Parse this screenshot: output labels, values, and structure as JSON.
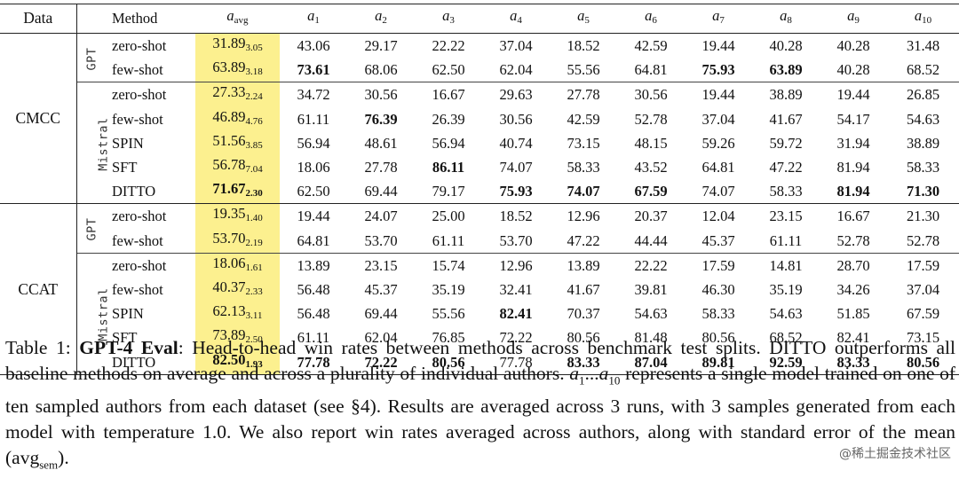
{
  "table": {
    "headers": {
      "data": "Data",
      "method": "Method",
      "avg_base": "a",
      "avg_sub": "avg",
      "author_base": "a",
      "authors": [
        "1",
        "2",
        "3",
        "4",
        "5",
        "6",
        "7",
        "8",
        "9",
        "10"
      ]
    },
    "datasets": [
      {
        "name": "CMCC",
        "groups": [
          {
            "model": "GPT",
            "rows": [
              {
                "method": "zero-shot",
                "avg": "31.89",
                "sem": "3.05",
                "avg_bold": false,
                "values": [
                  "43.06",
                  "29.17",
                  "22.22",
                  "37.04",
                  "18.52",
                  "42.59",
                  "19.44",
                  "40.28",
                  "40.28",
                  "31.48"
                ],
                "bold": []
              },
              {
                "method": "few-shot",
                "avg": "63.89",
                "sem": "3.18",
                "avg_bold": false,
                "values": [
                  "73.61",
                  "68.06",
                  "62.50",
                  "62.04",
                  "55.56",
                  "64.81",
                  "75.93",
                  "63.89",
                  "40.28",
                  "68.52"
                ],
                "bold": [
                  0,
                  6,
                  7
                ]
              }
            ]
          },
          {
            "model": "Mistral",
            "rows": [
              {
                "method": "zero-shot",
                "avg": "27.33",
                "sem": "2.24",
                "avg_bold": false,
                "values": [
                  "34.72",
                  "30.56",
                  "16.67",
                  "29.63",
                  "27.78",
                  "30.56",
                  "19.44",
                  "38.89",
                  "19.44",
                  "26.85"
                ],
                "bold": []
              },
              {
                "method": "few-shot",
                "avg": "46.89",
                "sem": "4.76",
                "avg_bold": false,
                "values": [
                  "61.11",
                  "76.39",
                  "26.39",
                  "30.56",
                  "42.59",
                  "52.78",
                  "37.04",
                  "41.67",
                  "54.17",
                  "54.63"
                ],
                "bold": [
                  1
                ]
              },
              {
                "method": "SPIN",
                "avg": "51.56",
                "sem": "3.85",
                "avg_bold": false,
                "values": [
                  "56.94",
                  "48.61",
                  "56.94",
                  "40.74",
                  "73.15",
                  "48.15",
                  "59.26",
                  "59.72",
                  "31.94",
                  "38.89"
                ],
                "bold": []
              },
              {
                "method": "SFT",
                "avg": "56.78",
                "sem": "7.04",
                "avg_bold": false,
                "values": [
                  "18.06",
                  "27.78",
                  "86.11",
                  "74.07",
                  "58.33",
                  "43.52",
                  "64.81",
                  "47.22",
                  "81.94",
                  "58.33"
                ],
                "bold": [
                  2
                ]
              },
              {
                "method": "DITTO",
                "avg": "71.67",
                "sem": "2.30",
                "avg_bold": true,
                "values": [
                  "62.50",
                  "69.44",
                  "79.17",
                  "75.93",
                  "74.07",
                  "67.59",
                  "74.07",
                  "58.33",
                  "81.94",
                  "71.30"
                ],
                "bold": [
                  3,
                  4,
                  5,
                  8,
                  9
                ]
              }
            ]
          }
        ]
      },
      {
        "name": "CCAT",
        "groups": [
          {
            "model": "GPT",
            "rows": [
              {
                "method": "zero-shot",
                "avg": "19.35",
                "sem": "1.40",
                "avg_bold": false,
                "values": [
                  "19.44",
                  "24.07",
                  "25.00",
                  "18.52",
                  "12.96",
                  "20.37",
                  "12.04",
                  "23.15",
                  "16.67",
                  "21.30"
                ],
                "bold": []
              },
              {
                "method": "few-shot",
                "avg": "53.70",
                "sem": "2.19",
                "avg_bold": false,
                "values": [
                  "64.81",
                  "53.70",
                  "61.11",
                  "53.70",
                  "47.22",
                  "44.44",
                  "45.37",
                  "61.11",
                  "52.78",
                  "52.78"
                ],
                "bold": []
              }
            ]
          },
          {
            "model": "Mistral",
            "rows": [
              {
                "method": "zero-shot",
                "avg": "18.06",
                "sem": "1.61",
                "avg_bold": false,
                "values": [
                  "13.89",
                  "23.15",
                  "15.74",
                  "12.96",
                  "13.89",
                  "22.22",
                  "17.59",
                  "14.81",
                  "28.70",
                  "17.59"
                ],
                "bold": []
              },
              {
                "method": "few-shot",
                "avg": "40.37",
                "sem": "2.33",
                "avg_bold": false,
                "values": [
                  "56.48",
                  "45.37",
                  "35.19",
                  "32.41",
                  "41.67",
                  "39.81",
                  "46.30",
                  "35.19",
                  "34.26",
                  "37.04"
                ],
                "bold": []
              },
              {
                "method": "SPIN",
                "avg": "62.13",
                "sem": "3.11",
                "avg_bold": false,
                "values": [
                  "56.48",
                  "69.44",
                  "55.56",
                  "82.41",
                  "70.37",
                  "54.63",
                  "58.33",
                  "54.63",
                  "51.85",
                  "67.59"
                ],
                "bold": [
                  3
                ]
              },
              {
                "method": "SFT",
                "avg": "73.89",
                "sem": "2.50",
                "avg_bold": false,
                "values": [
                  "61.11",
                  "62.04",
                  "76.85",
                  "72.22",
                  "80.56",
                  "81.48",
                  "80.56",
                  "68.52",
                  "82.41",
                  "73.15"
                ],
                "bold": []
              },
              {
                "method": "DITTO",
                "avg": "82.50",
                "sem": "1.93",
                "avg_bold": true,
                "values": [
                  "77.78",
                  "72.22",
                  "80.56",
                  "77.78",
                  "83.33",
                  "87.04",
                  "89.81",
                  "92.59",
                  "83.33",
                  "80.56"
                ],
                "bold": [
                  0,
                  1,
                  2,
                  4,
                  5,
                  6,
                  7,
                  8,
                  9
                ]
              }
            ]
          }
        ]
      }
    ]
  },
  "caption": {
    "label": "Table 1:",
    "title": "GPT-4 Eval",
    "part1": ": Head-to-head win rates between methods across benchmark test splits. DITTO outperforms all baseline methods on average and across a plurality of individual authors. ",
    "range_a1_base": "a",
    "range_a1_sub": "1",
    "range_dots": "...",
    "range_a10_base": "a",
    "range_a10_sub": "10",
    "part2": " represents a single model trained on one of ten sampled authors from each dataset (see §4). Results are averaged across 3 runs, with 3 samples generated from each model with temperature 1.0. We also report win rates averaged across authors, along with standard error of the mean (avg",
    "sem_sub": "sem",
    "part3": ")."
  },
  "watermark": "@稀土掘金技术社区"
}
